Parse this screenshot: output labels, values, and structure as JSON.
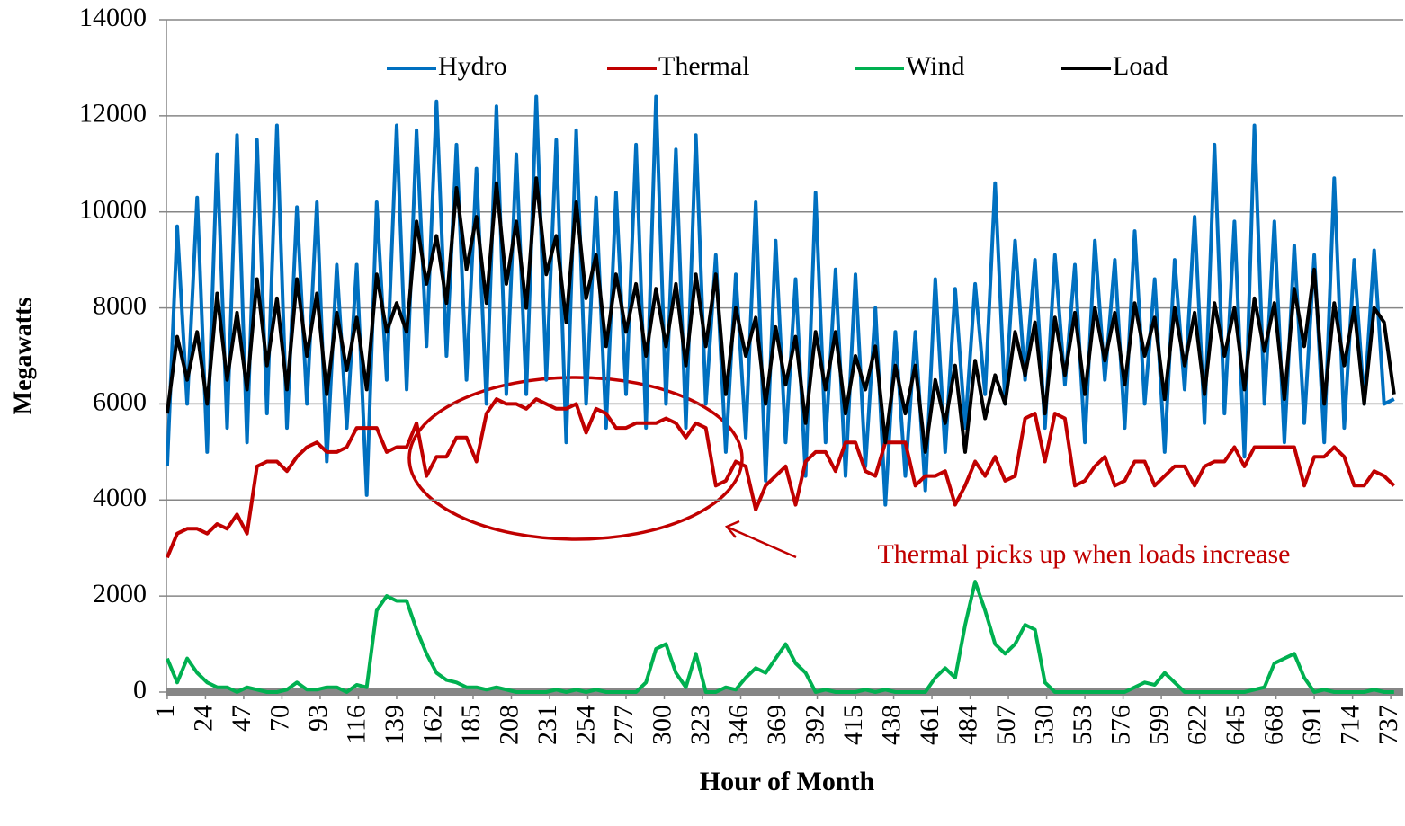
{
  "chart_data": {
    "type": "line",
    "y_label": "Megawatts",
    "x_label": "Hour of Month",
    "annotation": "Thermal picks up when loads increase",
    "legend": "top",
    "grid": true,
    "xlim": [
      0.5,
      744.5
    ],
    "xticks": [
      1,
      24,
      47,
      70,
      93,
      116,
      139,
      162,
      185,
      208,
      231,
      254,
      277,
      300,
      323,
      346,
      369,
      392,
      415,
      438,
      461,
      484,
      507,
      530,
      553,
      576,
      599,
      622,
      645,
      668,
      691,
      714,
      737
    ],
    "ylim": [
      0,
      14000
    ],
    "yticks": [
      0,
      2000,
      4000,
      6000,
      8000,
      10000,
      12000,
      14000
    ],
    "x": [
      1,
      7,
      13,
      19,
      25,
      31,
      37,
      43,
      49,
      55,
      61,
      67,
      73,
      79,
      85,
      91,
      97,
      103,
      109,
      115,
      121,
      127,
      133,
      139,
      145,
      151,
      157,
      163,
      169,
      175,
      181,
      187,
      193,
      199,
      205,
      211,
      217,
      223,
      229,
      235,
      241,
      247,
      253,
      259,
      265,
      271,
      277,
      283,
      289,
      295,
      301,
      307,
      313,
      319,
      325,
      331,
      337,
      343,
      349,
      355,
      361,
      367,
      373,
      379,
      385,
      391,
      397,
      403,
      409,
      415,
      421,
      427,
      433,
      439,
      445,
      451,
      457,
      463,
      469,
      475,
      481,
      487,
      493,
      499,
      505,
      511,
      517,
      523,
      529,
      535,
      541,
      547,
      553,
      559,
      565,
      571,
      577,
      583,
      589,
      595,
      601,
      607,
      613,
      619,
      625,
      631,
      637,
      643,
      649,
      655,
      661,
      667,
      673,
      679,
      685,
      691,
      697,
      703,
      709,
      715,
      721,
      727,
      733,
      739
    ],
    "series": [
      {
        "name": "Hydro",
        "color": "#0070c0",
        "values": [
          4700,
          9700,
          6000,
          10300,
          5000,
          11200,
          5500,
          11600,
          5200,
          11500,
          5800,
          11800,
          5500,
          10100,
          6000,
          10200,
          4800,
          8900,
          5500,
          8900,
          4100,
          10200,
          6500,
          11800,
          6300,
          11700,
          7200,
          12300,
          7000,
          11400,
          6500,
          10900,
          6000,
          12200,
          6200,
          11200,
          6200,
          12400,
          6500,
          11500,
          5200,
          11700,
          6000,
          10300,
          5500,
          10400,
          6200,
          11400,
          5500,
          12400,
          6000,
          11300,
          5500,
          11600,
          6000,
          9100,
          5000,
          8700,
          5300,
          10200,
          4400,
          9400,
          5200,
          8600,
          4500,
          10400,
          5200,
          8800,
          4500,
          8700,
          4700,
          8000,
          3900,
          7500,
          4500,
          7500,
          4200,
          8600,
          5000,
          8400,
          5500,
          8500,
          6200,
          10600,
          6000,
          9400,
          6500,
          9000,
          5500,
          9100,
          6400,
          8900,
          5200,
          9400,
          6500,
          9000,
          5500,
          9600,
          6000,
          8600,
          5000,
          9000,
          6300,
          9900,
          5600,
          11400,
          5800,
          9800,
          4900,
          11800,
          6000,
          9800,
          5200,
          9300,
          5600,
          9100,
          5200,
          10700,
          5500,
          9000,
          6000,
          9200,
          6000,
          6100
        ]
      },
      {
        "name": "Thermal",
        "color": "#c00000",
        "values": [
          2800,
          3300,
          3400,
          3400,
          3300,
          3500,
          3400,
          3700,
          3300,
          4700,
          4800,
          4800,
          4600,
          4900,
          5100,
          5200,
          5000,
          5000,
          5100,
          5500,
          5500,
          5500,
          5000,
          5100,
          5100,
          5600,
          4500,
          4900,
          4900,
          5300,
          5300,
          4800,
          5800,
          6100,
          6000,
          6000,
          5900,
          6100,
          6000,
          5900,
          5900,
          6000,
          5400,
          5900,
          5800,
          5500,
          5500,
          5600,
          5600,
          5600,
          5700,
          5600,
          5300,
          5600,
          5500,
          4300,
          4400,
          4800,
          4700,
          3800,
          4300,
          4500,
          4700,
          3900,
          4800,
          5000,
          5000,
          4600,
          5200,
          5200,
          4600,
          4500,
          5200,
          5200,
          5200,
          4300,
          4500,
          4500,
          4600,
          3900,
          4300,
          4800,
          4500,
          4900,
          4400,
          4500,
          5700,
          5800,
          4800,
          5800,
          5700,
          4300,
          4400,
          4700,
          4900,
          4300,
          4400,
          4800,
          4800,
          4300,
          4500,
          4700,
          4700,
          4300,
          4700,
          4800,
          4800,
          5100,
          4700,
          5100,
          5100,
          5100,
          5100,
          5100,
          4300,
          4900,
          4900,
          5100,
          4900,
          4300,
          4300,
          4600,
          4500,
          4300
        ]
      },
      {
        "name": "Wind",
        "color": "#00b050",
        "values": [
          700,
          200,
          700,
          400,
          200,
          100,
          100,
          0,
          100,
          50,
          0,
          0,
          50,
          200,
          50,
          50,
          100,
          100,
          0,
          150,
          100,
          1700,
          2000,
          1900,
          1900,
          1300,
          800,
          400,
          250,
          200,
          100,
          100,
          50,
          100,
          50,
          0,
          0,
          0,
          0,
          50,
          0,
          50,
          0,
          50,
          0,
          0,
          0,
          0,
          200,
          900,
          1000,
          400,
          100,
          800,
          0,
          0,
          100,
          50,
          300,
          500,
          400,
          700,
          1000,
          600,
          400,
          0,
          50,
          0,
          0,
          0,
          50,
          0,
          50,
          0,
          0,
          0,
          0,
          300,
          500,
          300,
          1400,
          2300,
          1700,
          1000,
          800,
          1000,
          1400,
          1300,
          200,
          0,
          0,
          0,
          0,
          0,
          0,
          0,
          0,
          100,
          200,
          150,
          400,
          200,
          0,
          0,
          0,
          0,
          0,
          0,
          0,
          50,
          100,
          600,
          700,
          800,
          300,
          0,
          50,
          0,
          0,
          0,
          0,
          50,
          0,
          0
        ]
      },
      {
        "name": "Load",
        "color": "#000000",
        "values": [
          5800,
          7400,
          6500,
          7500,
          6000,
          8300,
          6500,
          7900,
          6300,
          8600,
          6800,
          8200,
          6300,
          8600,
          7000,
          8300,
          6200,
          7900,
          6700,
          7800,
          6300,
          8700,
          7500,
          8100,
          7500,
          9800,
          8500,
          9500,
          8100,
          10500,
          8800,
          9900,
          8100,
          10600,
          8500,
          9800,
          8000,
          10700,
          8700,
          9500,
          7700,
          10200,
          8200,
          9100,
          7200,
          8700,
          7500,
          8500,
          7000,
          8400,
          7200,
          8500,
          6800,
          8700,
          7200,
          8700,
          6200,
          8000,
          7000,
          7800,
          6000,
          7600,
          6400,
          7400,
          5600,
          7500,
          6300,
          7500,
          5800,
          7000,
          6300,
          7200,
          5200,
          6800,
          5800,
          6800,
          5000,
          6500,
          5600,
          6800,
          5000,
          6900,
          5700,
          6600,
          6000,
          7500,
          6600,
          7700,
          5800,
          7800,
          6600,
          7900,
          6200,
          8000,
          6900,
          7900,
          6400,
          8100,
          7000,
          7800,
          6100,
          8000,
          6800,
          7900,
          6200,
          8100,
          7000,
          8000,
          6300,
          8200,
          7100,
          8100,
          6100,
          8400,
          7200,
          8800,
          6000,
          8100,
          6800,
          8000,
          6000,
          8000,
          7700,
          6200
        ]
      }
    ]
  }
}
